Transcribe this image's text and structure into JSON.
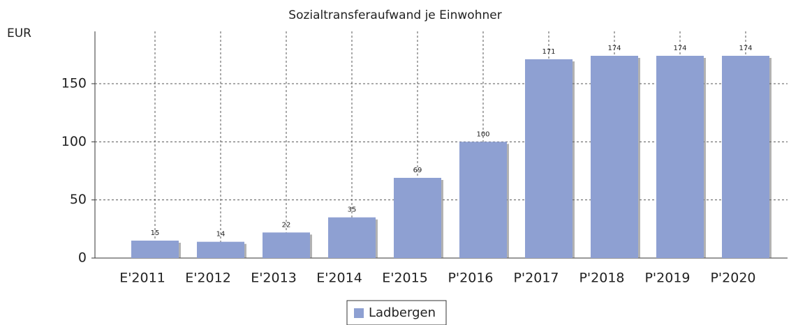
{
  "chart_data": {
    "type": "bar",
    "title": "Sozialtransferaufwand je Einwohner",
    "y_label": "EUR",
    "categories": [
      "E'2011",
      "E'2012",
      "E'2013",
      "E'2014",
      "E'2015",
      "P'2016",
      "P'2017",
      "P'2018",
      "P'2019",
      "P'2020"
    ],
    "series": [
      {
        "name": "Ladbergen",
        "color": "#8ea0d2",
        "values": [
          15,
          14,
          22,
          35,
          69,
          100,
          171,
          174,
          174,
          174
        ]
      }
    ],
    "ylim": [
      0,
      195
    ],
    "yticks": [
      0,
      50,
      100,
      150
    ],
    "grid": true,
    "legend": "bottom"
  }
}
